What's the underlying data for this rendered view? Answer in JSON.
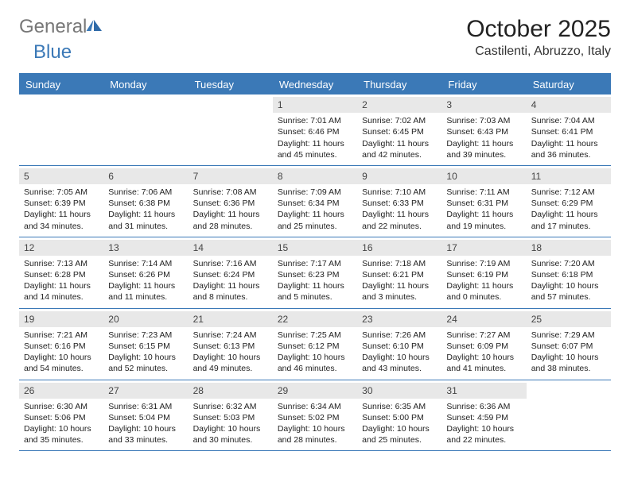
{
  "brand": {
    "part1": "General",
    "part2": "Blue"
  },
  "title": "October 2025",
  "location": "Castilenti, Abruzzo, Italy",
  "colors": {
    "accent": "#3b79b7",
    "daynum_bg": "#e8e8e8",
    "text": "#222222",
    "bg": "#ffffff"
  },
  "dayNames": [
    "Sunday",
    "Monday",
    "Tuesday",
    "Wednesday",
    "Thursday",
    "Friday",
    "Saturday"
  ],
  "weeks": [
    [
      {
        "n": "",
        "empty": true
      },
      {
        "n": "",
        "empty": true
      },
      {
        "n": "",
        "empty": true
      },
      {
        "n": "1",
        "sunrise": "7:01 AM",
        "sunset": "6:46 PM",
        "daylight": "11 hours and 45 minutes."
      },
      {
        "n": "2",
        "sunrise": "7:02 AM",
        "sunset": "6:45 PM",
        "daylight": "11 hours and 42 minutes."
      },
      {
        "n": "3",
        "sunrise": "7:03 AM",
        "sunset": "6:43 PM",
        "daylight": "11 hours and 39 minutes."
      },
      {
        "n": "4",
        "sunrise": "7:04 AM",
        "sunset": "6:41 PM",
        "daylight": "11 hours and 36 minutes."
      }
    ],
    [
      {
        "n": "5",
        "sunrise": "7:05 AM",
        "sunset": "6:39 PM",
        "daylight": "11 hours and 34 minutes."
      },
      {
        "n": "6",
        "sunrise": "7:06 AM",
        "sunset": "6:38 PM",
        "daylight": "11 hours and 31 minutes."
      },
      {
        "n": "7",
        "sunrise": "7:08 AM",
        "sunset": "6:36 PM",
        "daylight": "11 hours and 28 minutes."
      },
      {
        "n": "8",
        "sunrise": "7:09 AM",
        "sunset": "6:34 PM",
        "daylight": "11 hours and 25 minutes."
      },
      {
        "n": "9",
        "sunrise": "7:10 AM",
        "sunset": "6:33 PM",
        "daylight": "11 hours and 22 minutes."
      },
      {
        "n": "10",
        "sunrise": "7:11 AM",
        "sunset": "6:31 PM",
        "daylight": "11 hours and 19 minutes."
      },
      {
        "n": "11",
        "sunrise": "7:12 AM",
        "sunset": "6:29 PM",
        "daylight": "11 hours and 17 minutes."
      }
    ],
    [
      {
        "n": "12",
        "sunrise": "7:13 AM",
        "sunset": "6:28 PM",
        "daylight": "11 hours and 14 minutes."
      },
      {
        "n": "13",
        "sunrise": "7:14 AM",
        "sunset": "6:26 PM",
        "daylight": "11 hours and 11 minutes."
      },
      {
        "n": "14",
        "sunrise": "7:16 AM",
        "sunset": "6:24 PM",
        "daylight": "11 hours and 8 minutes."
      },
      {
        "n": "15",
        "sunrise": "7:17 AM",
        "sunset": "6:23 PM",
        "daylight": "11 hours and 5 minutes."
      },
      {
        "n": "16",
        "sunrise": "7:18 AM",
        "sunset": "6:21 PM",
        "daylight": "11 hours and 3 minutes."
      },
      {
        "n": "17",
        "sunrise": "7:19 AM",
        "sunset": "6:19 PM",
        "daylight": "11 hours and 0 minutes."
      },
      {
        "n": "18",
        "sunrise": "7:20 AM",
        "sunset": "6:18 PM",
        "daylight": "10 hours and 57 minutes."
      }
    ],
    [
      {
        "n": "19",
        "sunrise": "7:21 AM",
        "sunset": "6:16 PM",
        "daylight": "10 hours and 54 minutes."
      },
      {
        "n": "20",
        "sunrise": "7:23 AM",
        "sunset": "6:15 PM",
        "daylight": "10 hours and 52 minutes."
      },
      {
        "n": "21",
        "sunrise": "7:24 AM",
        "sunset": "6:13 PM",
        "daylight": "10 hours and 49 minutes."
      },
      {
        "n": "22",
        "sunrise": "7:25 AM",
        "sunset": "6:12 PM",
        "daylight": "10 hours and 46 minutes."
      },
      {
        "n": "23",
        "sunrise": "7:26 AM",
        "sunset": "6:10 PM",
        "daylight": "10 hours and 43 minutes."
      },
      {
        "n": "24",
        "sunrise": "7:27 AM",
        "sunset": "6:09 PM",
        "daylight": "10 hours and 41 minutes."
      },
      {
        "n": "25",
        "sunrise": "7:29 AM",
        "sunset": "6:07 PM",
        "daylight": "10 hours and 38 minutes."
      }
    ],
    [
      {
        "n": "26",
        "sunrise": "6:30 AM",
        "sunset": "5:06 PM",
        "daylight": "10 hours and 35 minutes."
      },
      {
        "n": "27",
        "sunrise": "6:31 AM",
        "sunset": "5:04 PM",
        "daylight": "10 hours and 33 minutes."
      },
      {
        "n": "28",
        "sunrise": "6:32 AM",
        "sunset": "5:03 PM",
        "daylight": "10 hours and 30 minutes."
      },
      {
        "n": "29",
        "sunrise": "6:34 AM",
        "sunset": "5:02 PM",
        "daylight": "10 hours and 28 minutes."
      },
      {
        "n": "30",
        "sunrise": "6:35 AM",
        "sunset": "5:00 PM",
        "daylight": "10 hours and 25 minutes."
      },
      {
        "n": "31",
        "sunrise": "6:36 AM",
        "sunset": "4:59 PM",
        "daylight": "10 hours and 22 minutes."
      },
      {
        "n": "",
        "empty": true
      }
    ]
  ],
  "labels": {
    "sunrise": "Sunrise:",
    "sunset": "Sunset:",
    "daylight": "Daylight:"
  }
}
